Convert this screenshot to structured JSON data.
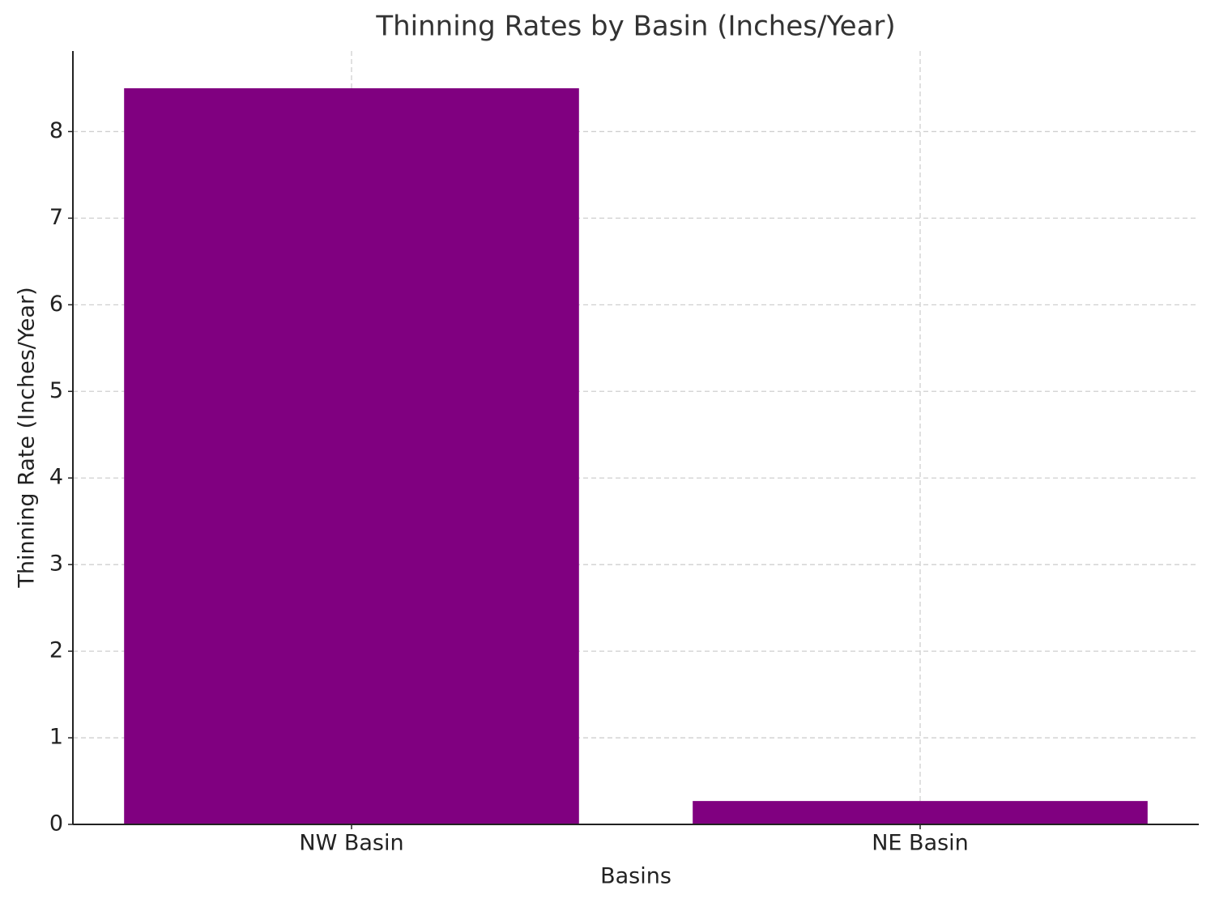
{
  "chart_data": {
    "type": "bar",
    "title": "Thinning Rates by Basin (Inches/Year)",
    "x_label": "Basins",
    "y_label": "Thinning Rate (Inches/Year)",
    "categories": [
      "NW Basin",
      "NE Basin"
    ],
    "values": [
      8.5,
      0.27
    ],
    "color": "#800080",
    "ylim": [
      0,
      8.93
    ],
    "yticks": [
      0,
      1,
      2,
      3,
      4,
      5,
      6,
      7,
      8
    ],
    "grid": true
  }
}
